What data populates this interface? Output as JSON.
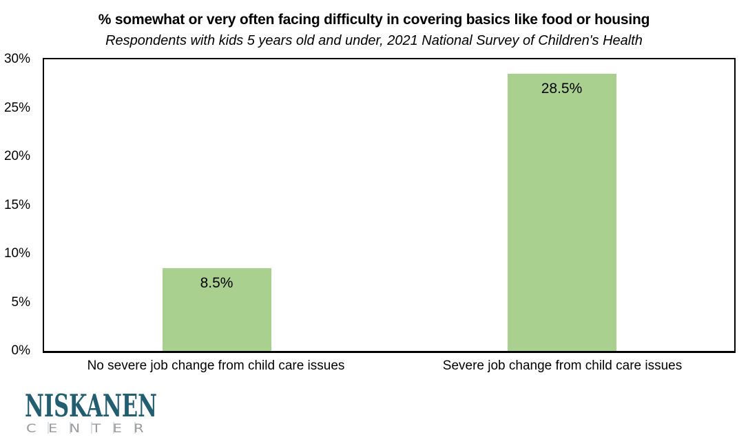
{
  "chart_data": {
    "type": "bar",
    "title": "% somewhat or very often facing difficulty in covering basics like food or housing",
    "subtitle": "Respondents with kids 5 years old and under, 2021 National Survey of Children's Health",
    "categories": [
      "No severe job change from child care issues",
      "Severe job change from child care issues"
    ],
    "values": [
      8.5,
      28.5
    ],
    "data_labels": [
      "8.5%",
      "28.5%"
    ],
    "xlabel": "",
    "ylabel": "",
    "ylim": [
      0,
      30
    ],
    "yticks": [
      {
        "value": 0,
        "label": "0%"
      },
      {
        "value": 5,
        "label": "5%"
      },
      {
        "value": 10,
        "label": "10%"
      },
      {
        "value": 15,
        "label": "15%"
      },
      {
        "value": 20,
        "label": "20%"
      },
      {
        "value": 25,
        "label": "25%"
      },
      {
        "value": 30,
        "label": "30%"
      }
    ],
    "grid": false,
    "legend": "none",
    "bar_color": "#a9d08e",
    "axis_color": "#000000",
    "background_color": "#ffffff"
  },
  "logo": {
    "line1": "NISKANEN",
    "line2": "CENTER",
    "color_primary": "#235e70",
    "color_secondary": "#9b9b9b",
    "divider_color": "#c9d8e1"
  }
}
